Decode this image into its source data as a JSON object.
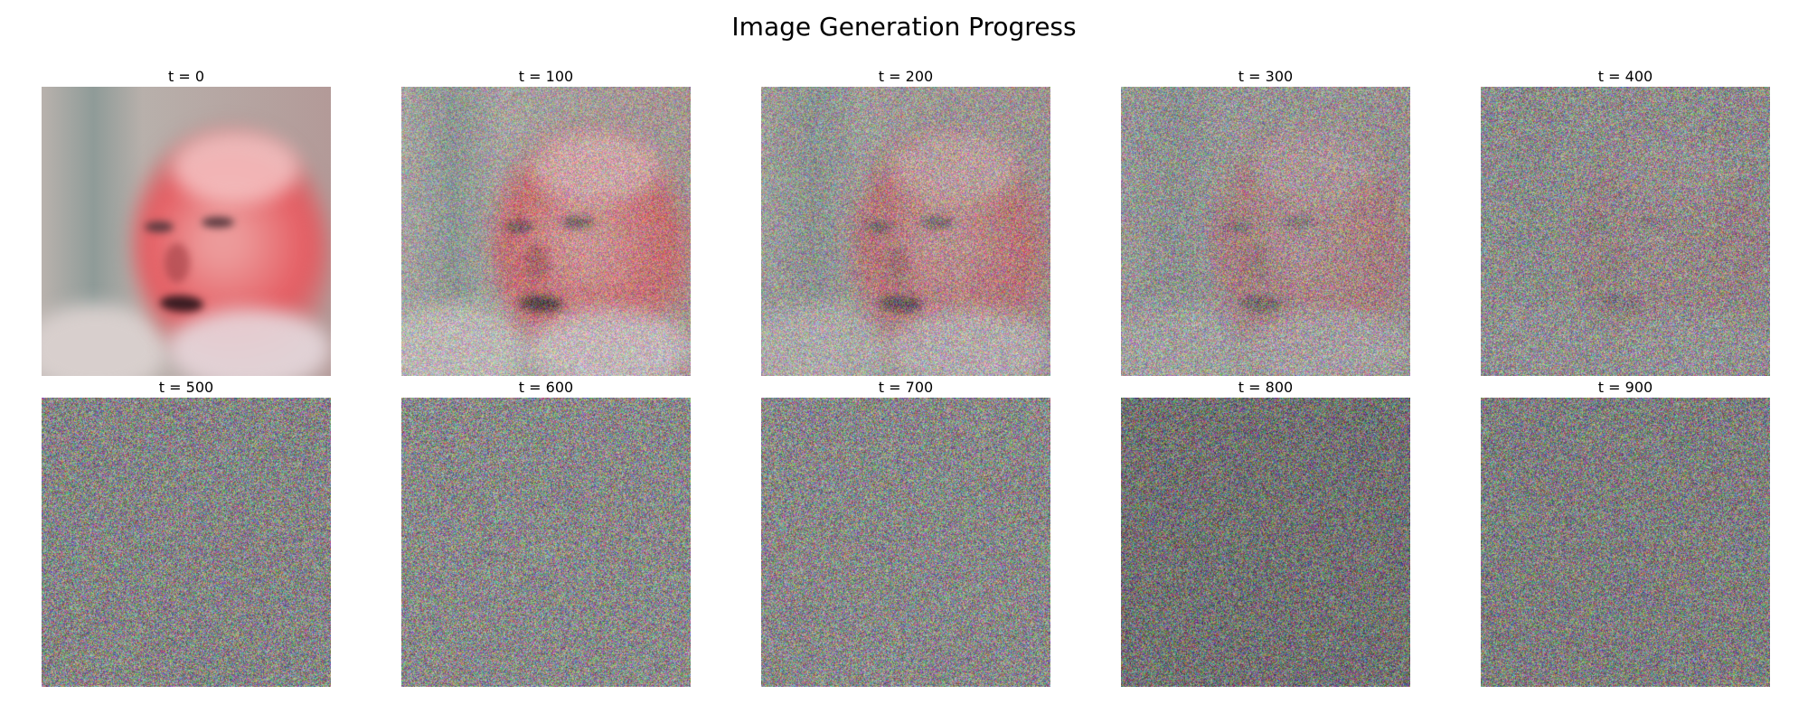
{
  "figure": {
    "title": "Image Generation Progress"
  },
  "panels": [
    {
      "label": "t = 0",
      "face_visibility": 1.0,
      "tone": "#8c8c8c"
    },
    {
      "label": "t = 100",
      "face_visibility": 0.62,
      "tone": "#8a8a8a"
    },
    {
      "label": "t = 200",
      "face_visibility": 0.45,
      "tone": "#898989"
    },
    {
      "label": "t = 300",
      "face_visibility": 0.28,
      "tone": "#8b8b8b"
    },
    {
      "label": "t = 400",
      "face_visibility": 0.12,
      "tone": "#888888"
    },
    {
      "label": "t = 500",
      "face_visibility": 0.0,
      "tone": "#858585"
    },
    {
      "label": "t = 600",
      "face_visibility": 0.0,
      "tone": "#898989"
    },
    {
      "label": "t = 700",
      "face_visibility": 0.0,
      "tone": "#888888"
    },
    {
      "label": "t = 800",
      "face_visibility": 0.0,
      "tone": "#727272"
    },
    {
      "label": "t = 900",
      "face_visibility": 0.0,
      "tone": "#7e7e7e"
    }
  ]
}
